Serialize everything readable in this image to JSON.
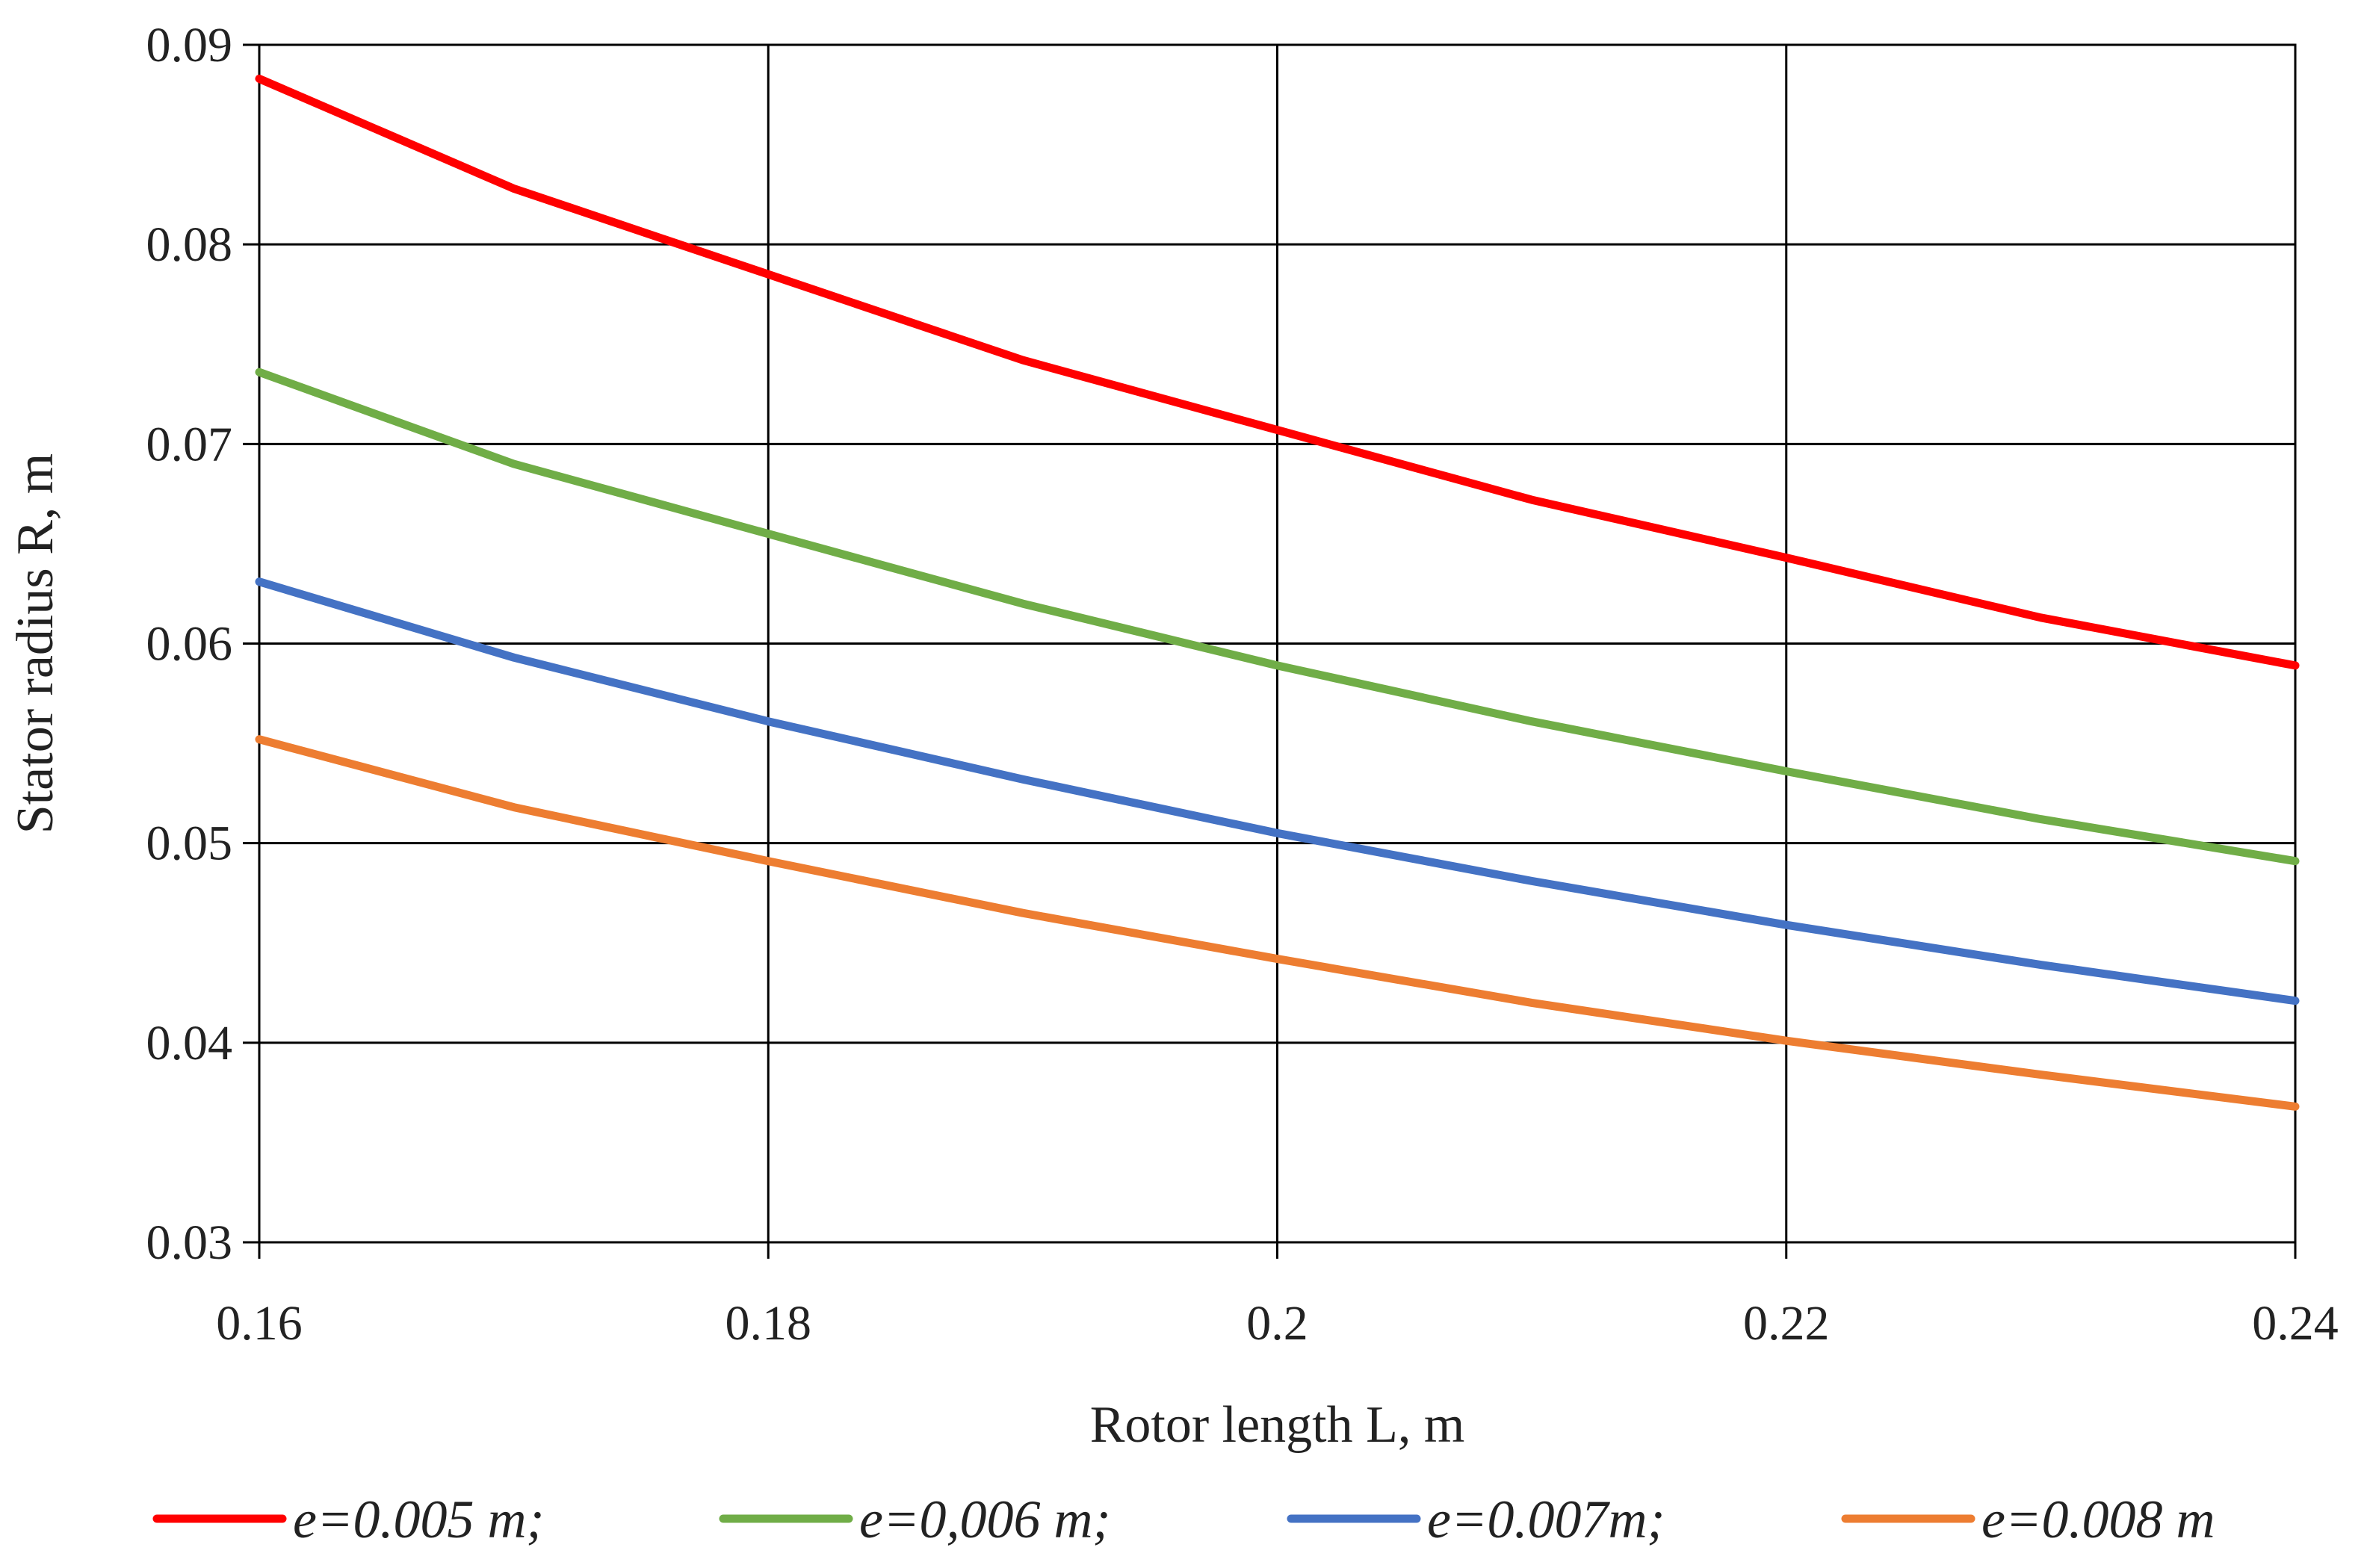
{
  "chart_data": {
    "type": "line",
    "title": "",
    "xlabel": "Rotor length L, m",
    "ylabel": "Stator radius R, m",
    "xlim": [
      0.16,
      0.24
    ],
    "ylim": [
      0.03,
      0.09
    ],
    "x_ticks": [
      0.16,
      0.18,
      0.2,
      0.22,
      0.24
    ],
    "x_tick_labels": [
      "0.16",
      "0.18",
      "0.2",
      "0.22",
      "0.24"
    ],
    "y_ticks": [
      0.03,
      0.04,
      0.05,
      0.06,
      0.07,
      0.08,
      0.09
    ],
    "y_tick_labels": [
      "0.03",
      "0.04",
      "0.05",
      "0.06",
      "0.07",
      "0.08",
      "0.09"
    ],
    "grid": true,
    "legend_position": "bottom",
    "x": [
      0.16,
      0.17,
      0.18,
      0.19,
      0.2,
      0.21,
      0.22,
      0.23,
      0.24
    ],
    "series": [
      {
        "name": "e=0.005 m;",
        "color": "#ff0000",
        "values": [
          0.0883,
          0.0828,
          0.0785,
          0.0742,
          0.0707,
          0.0672,
          0.0643,
          0.0613,
          0.0589
        ]
      },
      {
        "name": "e=0,006 m;",
        "color": "#70ad47",
        "values": [
          0.0736,
          0.069,
          0.0655,
          0.062,
          0.0589,
          0.0561,
          0.0536,
          0.0512,
          0.0491
        ]
      },
      {
        "name": "e=0.007m;",
        "color": "#4472c4",
        "values": [
          0.0631,
          0.0593,
          0.0561,
          0.0532,
          0.0505,
          0.0481,
          0.0459,
          0.0439,
          0.0421
        ]
      },
      {
        "name": "e=0.008 m",
        "color": "#ed7d31",
        "values": [
          0.0552,
          0.0518,
          0.0491,
          0.0465,
          0.0442,
          0.042,
          0.0401,
          0.0384,
          0.0368
        ]
      }
    ]
  }
}
